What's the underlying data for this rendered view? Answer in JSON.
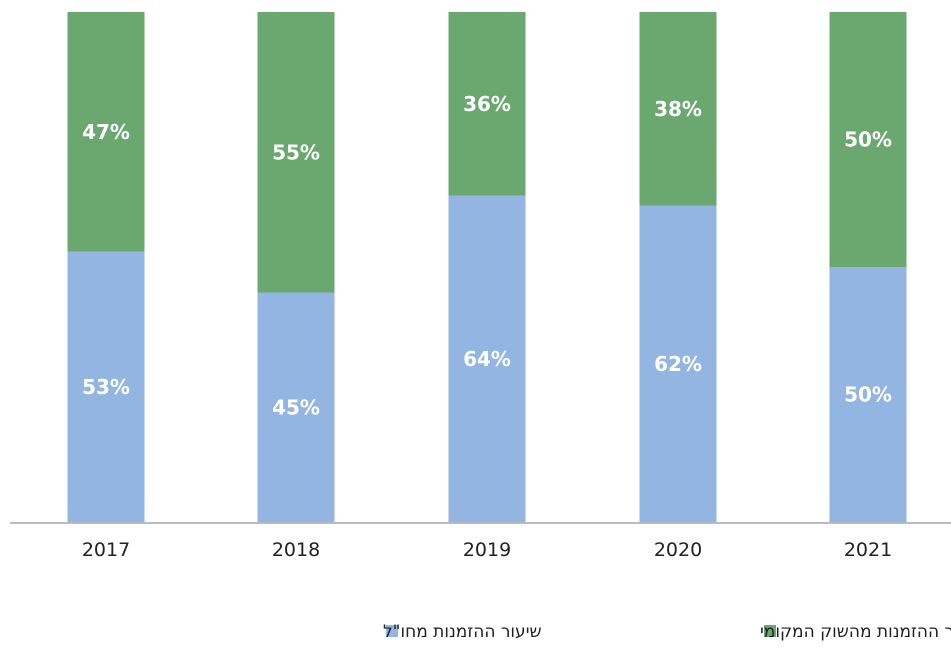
{
  "chart_data": {
    "type": "bar",
    "stacked": true,
    "categories": [
      "2017",
      "2018",
      "2019",
      "2020",
      "2021"
    ],
    "series": [
      {
        "name": "שיעור ההזמנות מחו\"ל",
        "values": [
          53,
          45,
          64,
          62,
          50
        ],
        "labels": [
          "53%",
          "45%",
          "64%",
          "62%",
          "50%"
        ],
        "color": "#93b5e1"
      },
      {
        "name": "שיעור ההזמנות מהשוק המקומי",
        "values": [
          47,
          55,
          36,
          38,
          50
        ],
        "labels": [
          "47%",
          "55%",
          "36%",
          "38%",
          "50%"
        ],
        "color": "#6aa870"
      }
    ],
    "ylim": [
      0,
      100
    ],
    "grid": false,
    "legend_position": "bottom"
  },
  "axis_color": "#b7bcc4"
}
